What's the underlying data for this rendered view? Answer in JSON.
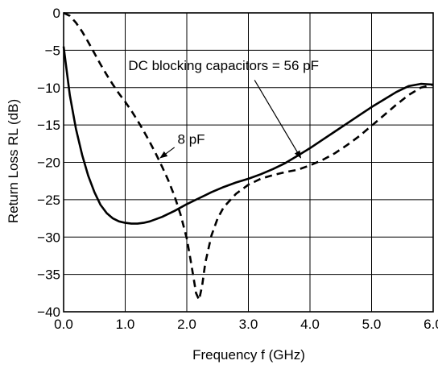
{
  "chart_data": {
    "type": "line",
    "title": "",
    "xlabel": "Frequency  f (GHz)",
    "ylabel": "Return Loss  RL (dB)",
    "xlim": [
      0,
      6
    ],
    "ylim": [
      -40,
      0
    ],
    "grid": true,
    "x_ticks": [
      0,
      1,
      2,
      3,
      4,
      5,
      6
    ],
    "x_tick_labels": [
      "0.0",
      "1.0",
      "2.0",
      "3.0",
      "4.0",
      "5.0",
      "6.0"
    ],
    "y_ticks": [
      0,
      -5,
      -10,
      -15,
      -20,
      -25,
      -30,
      -35,
      -40
    ],
    "y_tick_labels": [
      "0",
      "−5",
      "−10",
      "−15",
      "−20",
      "−25",
      "−30",
      "−35",
      "−40"
    ],
    "series": [
      {
        "name": "DC blocking capacitors = 56 pF",
        "style": "solid",
        "color": "#000000",
        "x": [
          0.0,
          0.1,
          0.2,
          0.3,
          0.4,
          0.5,
          0.6,
          0.7,
          0.8,
          0.9,
          1.0,
          1.1,
          1.2,
          1.3,
          1.4,
          1.6,
          1.8,
          2.0,
          2.2,
          2.4,
          2.6,
          2.8,
          3.0,
          3.2,
          3.4,
          3.6,
          3.8,
          4.0,
          4.2,
          4.4,
          4.6,
          4.8,
          5.0,
          5.2,
          5.4,
          5.6,
          5.8,
          6.0
        ],
        "y": [
          -4.5,
          -11.0,
          -15.5,
          -19.0,
          -21.8,
          -24.0,
          -25.7,
          -26.8,
          -27.5,
          -27.9,
          -28.1,
          -28.2,
          -28.2,
          -28.1,
          -27.9,
          -27.3,
          -26.5,
          -25.6,
          -24.8,
          -24.0,
          -23.3,
          -22.7,
          -22.2,
          -21.6,
          -20.9,
          -20.1,
          -19.1,
          -18.1,
          -17.0,
          -15.9,
          -14.8,
          -13.7,
          -12.6,
          -11.6,
          -10.6,
          -9.8,
          -9.5,
          -9.6
        ]
      },
      {
        "name": "8 pF",
        "style": "dashed",
        "color": "#000000",
        "x": [
          0.0,
          0.1,
          0.2,
          0.3,
          0.4,
          0.5,
          0.6,
          0.7,
          0.8,
          0.9,
          1.0,
          1.1,
          1.2,
          1.3,
          1.4,
          1.5,
          1.6,
          1.7,
          1.8,
          1.9,
          2.0,
          2.05,
          2.1,
          2.15,
          2.2,
          2.25,
          2.3,
          2.4,
          2.5,
          2.6,
          2.8,
          3.0,
          3.2,
          3.4,
          3.6,
          3.8,
          4.0,
          4.2,
          4.4,
          4.6,
          4.8,
          5.0,
          5.2,
          5.4,
          5.6,
          5.8,
          6.0
        ],
        "y": [
          0.0,
          -0.4,
          -1.3,
          -2.5,
          -3.9,
          -5.4,
          -6.9,
          -8.3,
          -9.6,
          -10.8,
          -11.9,
          -13.1,
          -14.4,
          -15.8,
          -17.3,
          -18.9,
          -20.6,
          -22.4,
          -24.5,
          -27.0,
          -30.2,
          -32.5,
          -35.0,
          -37.5,
          -38.4,
          -36.5,
          -33.5,
          -29.8,
          -27.5,
          -26.0,
          -24.2,
          -23.0,
          -22.2,
          -21.7,
          -21.3,
          -21.0,
          -20.4,
          -19.7,
          -18.8,
          -17.7,
          -16.5,
          -15.1,
          -13.7,
          -12.3,
          -11.0,
          -10.0,
          -9.6
        ]
      }
    ],
    "annotations": [
      {
        "text": "DC blocking capacitors = 56 pF",
        "text_at": [
          1.05,
          -7.65
        ],
        "arrow_from": [
          3.1,
          -9.0
        ],
        "arrow_to": [
          3.85,
          -19.4
        ]
      },
      {
        "text": "8 pF",
        "text_at": [
          1.85,
          -17.5
        ],
        "arrow_from": [
          1.8,
          -18.0
        ],
        "arrow_to": [
          1.57,
          -19.4
        ]
      }
    ]
  }
}
